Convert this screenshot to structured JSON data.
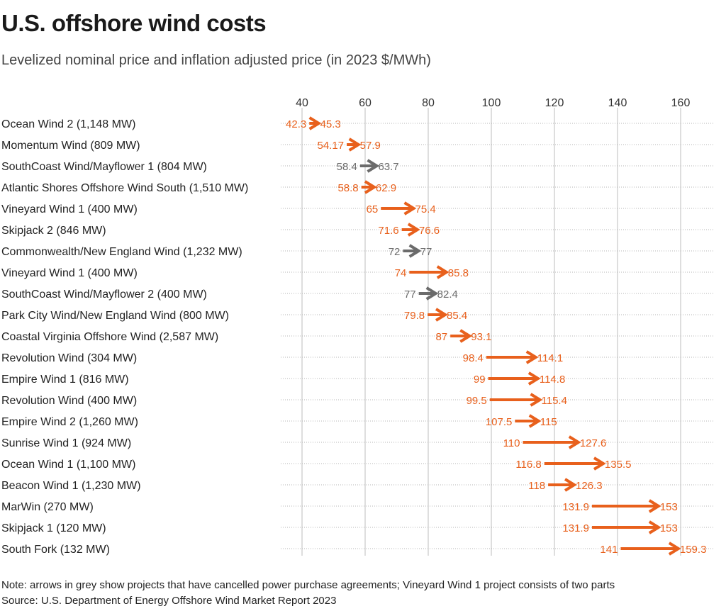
{
  "title": "U.S. offshore wind costs",
  "subtitle": "Levelized nominal price and inflation adjusted price (in 2023 $/MWh)",
  "note": "Note: arrows in grey show projects that have cancelled power purchase agreements; Vineyard Wind 1 project consists of two parts",
  "source": "Source: U.S. Department of Energy Offshore Wind Market Report 2023",
  "colors": {
    "active": "#e8601c",
    "cancelled": "#6b6b6b",
    "grid": "#bdbdbd",
    "dots": "#b5b5b5"
  },
  "chart_data": {
    "type": "arrow",
    "title": "U.S. offshore wind costs",
    "subtitle": "Levelized nominal price and inflation adjusted price (in 2023 $/MWh)",
    "xlim": [
      33,
      170
    ],
    "xticks": [
      40,
      60,
      80,
      100,
      120,
      140,
      160
    ],
    "grid": true,
    "series_names": [
      "Levelized nominal price",
      "Inflation adjusted price (2023 $/MWh)"
    ],
    "rows": [
      {
        "label": "Ocean Wind 2 (1,148 MW)",
        "start": 42.3,
        "end": 45.3,
        "cancelled": false,
        "start_label": "42.3",
        "end_label": "45.3"
      },
      {
        "label": "Momentum Wind (809 MW)",
        "start": 54.17,
        "end": 57.9,
        "cancelled": false,
        "start_label": "54.17",
        "end_label": "57.9"
      },
      {
        "label": "SouthCoast Wind/Mayflower 1 (804 MW)",
        "start": 58.4,
        "end": 63.7,
        "cancelled": true,
        "start_label": "58.4",
        "end_label": "63.7"
      },
      {
        "label": "Atlantic Shores Offshore Wind South (1,510 MW)",
        "start": 58.8,
        "end": 62.9,
        "cancelled": false,
        "start_label": "58.8",
        "end_label": "62.9"
      },
      {
        "label": "Vineyard Wind 1 (400 MW)",
        "start": 65,
        "end": 75.4,
        "cancelled": false,
        "start_label": "65",
        "end_label": "75.4"
      },
      {
        "label": "Skipjack 2 (846 MW)",
        "start": 71.6,
        "end": 76.6,
        "cancelled": false,
        "start_label": "71.6",
        "end_label": "76.6"
      },
      {
        "label": "Commonwealth/New England Wind (1,232 MW)",
        "start": 72,
        "end": 77,
        "cancelled": true,
        "start_label": "72",
        "end_label": "77"
      },
      {
        "label": "Vineyard Wind 1 (400 MW)",
        "start": 74,
        "end": 85.8,
        "cancelled": false,
        "start_label": "74",
        "end_label": "85.8"
      },
      {
        "label": "SouthCoast Wind/Mayflower 2 (400 MW)",
        "start": 77,
        "end": 82.4,
        "cancelled": true,
        "start_label": "77",
        "end_label": "82.4"
      },
      {
        "label": "Park City Wind/New England Wind (800 MW)",
        "start": 79.8,
        "end": 85.4,
        "cancelled": false,
        "start_label": "79.8",
        "end_label": "85.4"
      },
      {
        "label": "Coastal Virginia Offshore Wind (2,587 MW)",
        "start": 87,
        "end": 93.1,
        "cancelled": false,
        "start_label": "87",
        "end_label": "93.1"
      },
      {
        "label": "Revolution Wind (304 MW)",
        "start": 98.4,
        "end": 114.1,
        "cancelled": false,
        "start_label": "98.4",
        "end_label": "114.1"
      },
      {
        "label": "Empire Wind 1 (816 MW)",
        "start": 99,
        "end": 114.8,
        "cancelled": false,
        "start_label": "99",
        "end_label": "114.8"
      },
      {
        "label": "Revolution Wind (400 MW)",
        "start": 99.5,
        "end": 115.4,
        "cancelled": false,
        "start_label": "99.5",
        "end_label": "115.4"
      },
      {
        "label": "Empire Wind 2 (1,260 MW)",
        "start": 107.5,
        "end": 115,
        "cancelled": false,
        "start_label": "107.5",
        "end_label": "115"
      },
      {
        "label": "Sunrise Wind 1 (924 MW)",
        "start": 110,
        "end": 127.6,
        "cancelled": false,
        "start_label": "110",
        "end_label": "127.6"
      },
      {
        "label": "Ocean Wind 1 (1,100 MW)",
        "start": 116.8,
        "end": 135.5,
        "cancelled": false,
        "start_label": "116.8",
        "end_label": "135.5"
      },
      {
        "label": "Beacon Wind 1 (1,230 MW)",
        "start": 118,
        "end": 126.3,
        "cancelled": false,
        "start_label": "118",
        "end_label": "126.3"
      },
      {
        "label": "MarWin (270 MW)",
        "start": 131.9,
        "end": 153,
        "cancelled": false,
        "start_label": "131.9",
        "end_label": "153"
      },
      {
        "label": "Skipjack 1 (120 MW)",
        "start": 131.9,
        "end": 153,
        "cancelled": false,
        "start_label": "131.9",
        "end_label": "153"
      },
      {
        "label": "South Fork (132 MW)",
        "start": 141,
        "end": 159.3,
        "cancelled": false,
        "start_label": "141",
        "end_label": "159.3"
      }
    ]
  }
}
